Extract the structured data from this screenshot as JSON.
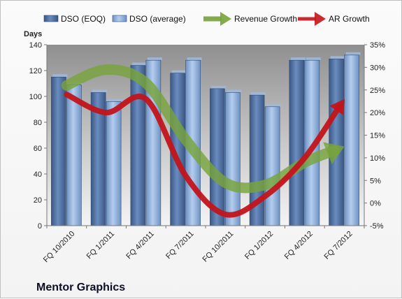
{
  "chart_data": {
    "type": "bar",
    "title": "",
    "footer_label": "Mentor Graphics",
    "categories": [
      "FQ 10/2010",
      "FQ 1/2011",
      "FQ 4/2011",
      "FQ 7/2011",
      "FQ 10/2011",
      "FQ 1/2012",
      "FQ 4/2012",
      "FQ 7/2012"
    ],
    "ylabel": "Days",
    "ylim": [
      0,
      140
    ],
    "yticks": [
      0,
      20,
      40,
      60,
      80,
      100,
      120,
      140
    ],
    "y2lim": [
      -5,
      35
    ],
    "y2ticks": [
      "-5%",
      "0%",
      "5%",
      "10%",
      "15%",
      "20%",
      "25%",
      "30%",
      "35%"
    ],
    "y2tick_values": [
      -5,
      0,
      5,
      10,
      15,
      20,
      25,
      30,
      35
    ],
    "series": [
      {
        "name": "DSO (EOQ)",
        "kind": "bar",
        "axis": "left",
        "color": "#4f6fa0",
        "values": [
          115,
          103,
          124,
          118,
          106,
          101,
          128,
          129
        ]
      },
      {
        "name": "DSO (average)",
        "kind": "bar",
        "axis": "left",
        "color": "#8fb0d8",
        "values": [
          109,
          96,
          128,
          128,
          103,
          92,
          128,
          132
        ]
      },
      {
        "name": "Revenue Growth",
        "kind": "arrow-line",
        "axis": "right",
        "color": "#77a33c",
        "values": [
          26,
          29.5,
          26.5,
          14,
          4.5,
          4,
          9,
          12.5
        ]
      },
      {
        "name": "AR Growth",
        "kind": "arrow-line",
        "axis": "right",
        "color": "#c3141b",
        "values": [
          24,
          20,
          23,
          6,
          -2.5,
          1.5,
          10,
          23
        ]
      }
    ],
    "legend": {
      "placement": "top"
    },
    "grid": false
  }
}
